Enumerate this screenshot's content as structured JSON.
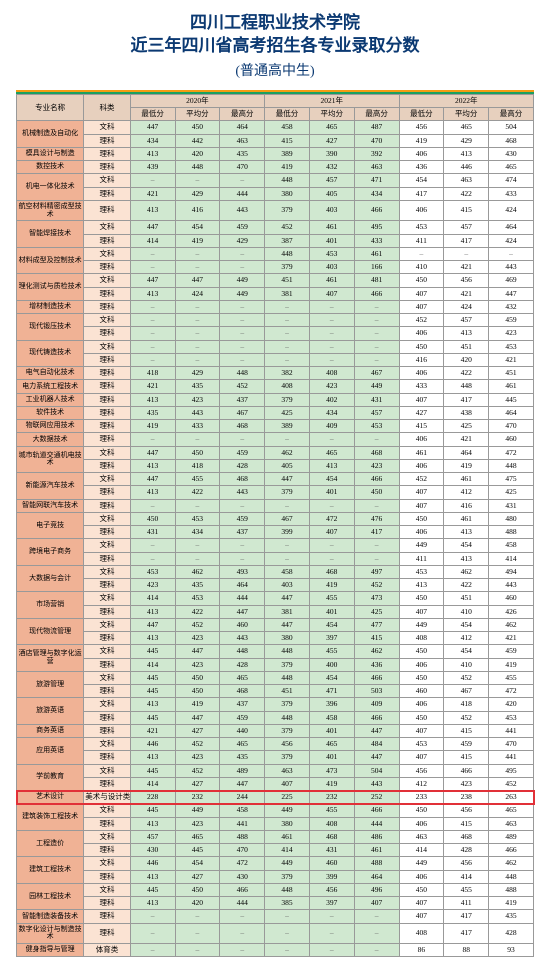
{
  "header": {
    "title1": "四川工程职业技术学院",
    "title2": "近三年四川省高考招生各专业录取分数",
    "subtitle": "普通高中生"
  },
  "columns": {
    "major": "专业名称",
    "cat": "科类",
    "years": [
      "2020年",
      "2021年",
      "2022年"
    ],
    "subs": [
      "最低分",
      "平均分",
      "最高分"
    ]
  },
  "rows": [
    {
      "major": "机械制造及自动化",
      "hl": false,
      "sub": [
        {
          "cat": "文科",
          "v": [
            "447",
            "450",
            "464",
            "458",
            "465",
            "487",
            "456",
            "465",
            "504"
          ]
        },
        {
          "cat": "理科",
          "v": [
            "434",
            "442",
            "463",
            "415",
            "427",
            "470",
            "419",
            "429",
            "468"
          ]
        }
      ]
    },
    {
      "major": "模具设计与制造",
      "hl": false,
      "sub": [
        {
          "cat": "理科",
          "v": [
            "413",
            "420",
            "435",
            "389",
            "390",
            "392",
            "406",
            "413",
            "430"
          ]
        }
      ]
    },
    {
      "major": "数控技术",
      "hl": false,
      "sub": [
        {
          "cat": "理科",
          "v": [
            "439",
            "448",
            "470",
            "419",
            "432",
            "463",
            "436",
            "446",
            "465"
          ]
        }
      ]
    },
    {
      "major": "机电一体化技术",
      "hl": false,
      "sub": [
        {
          "cat": "文科",
          "v": [
            "–",
            "–",
            "–",
            "448",
            "457",
            "471",
            "454",
            "463",
            "474"
          ]
        },
        {
          "cat": "理科",
          "v": [
            "421",
            "429",
            "444",
            "380",
            "405",
            "434",
            "417",
            "422",
            "433"
          ]
        }
      ]
    },
    {
      "major": "航空材料精密成型技术",
      "hl": false,
      "sub": [
        {
          "cat": "理科",
          "v": [
            "413",
            "416",
            "443",
            "379",
            "403",
            "466",
            "406",
            "415",
            "424"
          ]
        }
      ]
    },
    {
      "major": "智能焊接技术",
      "hl": false,
      "sub": [
        {
          "cat": "文科",
          "v": [
            "447",
            "454",
            "459",
            "452",
            "461",
            "495",
            "453",
            "457",
            "464"
          ]
        },
        {
          "cat": "理科",
          "v": [
            "414",
            "419",
            "429",
            "387",
            "401",
            "433",
            "411",
            "417",
            "424"
          ]
        }
      ]
    },
    {
      "major": "材料成型及控制技术",
      "hl": false,
      "sub": [
        {
          "cat": "文科",
          "v": [
            "–",
            "–",
            "–",
            "448",
            "453",
            "461",
            "–",
            "–",
            "–"
          ]
        },
        {
          "cat": "理科",
          "v": [
            "–",
            "–",
            "–",
            "379",
            "403",
            "166",
            "410",
            "421",
            "443"
          ]
        }
      ]
    },
    {
      "major": "理化测试与质检技术",
      "hl": false,
      "sub": [
        {
          "cat": "文科",
          "v": [
            "447",
            "447",
            "449",
            "451",
            "461",
            "481",
            "450",
            "456",
            "469"
          ]
        },
        {
          "cat": "理科",
          "v": [
            "413",
            "424",
            "449",
            "381",
            "407",
            "466",
            "407",
            "421",
            "447"
          ]
        }
      ]
    },
    {
      "major": "增材制造技术",
      "hl": false,
      "sub": [
        {
          "cat": "理科",
          "v": [
            "–",
            "–",
            "–",
            "–",
            "–",
            "–",
            "407",
            "424",
            "432"
          ]
        }
      ]
    },
    {
      "major": "现代锻压技术",
      "hl": false,
      "sub": [
        {
          "cat": "文科",
          "v": [
            "–",
            "–",
            "–",
            "–",
            "–",
            "–",
            "452",
            "457",
            "459"
          ]
        },
        {
          "cat": "理科",
          "v": [
            "–",
            "–",
            "–",
            "–",
            "–",
            "–",
            "406",
            "413",
            "423"
          ]
        }
      ]
    },
    {
      "major": "现代铸造技术",
      "hl": false,
      "sub": [
        {
          "cat": "文科",
          "v": [
            "–",
            "–",
            "–",
            "–",
            "–",
            "–",
            "450",
            "451",
            "453"
          ]
        },
        {
          "cat": "理科",
          "v": [
            "–",
            "–",
            "–",
            "–",
            "–",
            "–",
            "416",
            "420",
            "421"
          ]
        }
      ]
    },
    {
      "major": "电气自动化技术",
      "hl": false,
      "sub": [
        {
          "cat": "理科",
          "v": [
            "418",
            "429",
            "448",
            "382",
            "408",
            "467",
            "406",
            "422",
            "451"
          ]
        }
      ]
    },
    {
      "major": "电力系统工程技术",
      "hl": false,
      "sub": [
        {
          "cat": "理科",
          "v": [
            "421",
            "435",
            "452",
            "408",
            "423",
            "449",
            "433",
            "448",
            "461"
          ]
        }
      ]
    },
    {
      "major": "工业机器人技术",
      "hl": false,
      "sub": [
        {
          "cat": "理科",
          "v": [
            "413",
            "423",
            "437",
            "379",
            "402",
            "431",
            "407",
            "417",
            "445"
          ]
        }
      ]
    },
    {
      "major": "软件技术",
      "hl": false,
      "sub": [
        {
          "cat": "理科",
          "v": [
            "435",
            "443",
            "467",
            "425",
            "434",
            "457",
            "427",
            "438",
            "464"
          ]
        }
      ]
    },
    {
      "major": "物联网应用技术",
      "hl": false,
      "sub": [
        {
          "cat": "理科",
          "v": [
            "419",
            "433",
            "468",
            "389",
            "409",
            "453",
            "415",
            "425",
            "470"
          ]
        }
      ]
    },
    {
      "major": "大数据技术",
      "hl": false,
      "sub": [
        {
          "cat": "理科",
          "v": [
            "–",
            "–",
            "–",
            "–",
            "–",
            "–",
            "406",
            "421",
            "460"
          ]
        }
      ]
    },
    {
      "major": "城市轨道交通机电技术",
      "hl": false,
      "sub": [
        {
          "cat": "文科",
          "v": [
            "447",
            "450",
            "459",
            "462",
            "465",
            "468",
            "461",
            "464",
            "472"
          ]
        },
        {
          "cat": "理科",
          "v": [
            "413",
            "418",
            "428",
            "405",
            "413",
            "423",
            "406",
            "419",
            "448"
          ]
        }
      ]
    },
    {
      "major": "新能源汽车技术",
      "hl": false,
      "sub": [
        {
          "cat": "文科",
          "v": [
            "447",
            "455",
            "468",
            "447",
            "454",
            "466",
            "452",
            "461",
            "475"
          ]
        },
        {
          "cat": "理科",
          "v": [
            "413",
            "422",
            "443",
            "379",
            "401",
            "450",
            "407",
            "412",
            "425"
          ]
        }
      ]
    },
    {
      "major": "智能网联汽车技术",
      "hl": false,
      "sub": [
        {
          "cat": "理科",
          "v": [
            "–",
            "–",
            "–",
            "–",
            "–",
            "–",
            "407",
            "416",
            "431"
          ]
        }
      ]
    },
    {
      "major": "电子竞技",
      "hl": false,
      "sub": [
        {
          "cat": "文科",
          "v": [
            "450",
            "453",
            "459",
            "467",
            "472",
            "476",
            "450",
            "461",
            "480"
          ]
        },
        {
          "cat": "理科",
          "v": [
            "431",
            "434",
            "437",
            "399",
            "407",
            "417",
            "406",
            "413",
            "488"
          ]
        }
      ]
    },
    {
      "major": "跨境电子商务",
      "hl": false,
      "sub": [
        {
          "cat": "文科",
          "v": [
            "–",
            "–",
            "–",
            "–",
            "–",
            "–",
            "449",
            "454",
            "458"
          ]
        },
        {
          "cat": "理科",
          "v": [
            "–",
            "–",
            "–",
            "–",
            "–",
            "–",
            "411",
            "413",
            "414"
          ]
        }
      ]
    },
    {
      "major": "大数据与会计",
      "hl": false,
      "sub": [
        {
          "cat": "文科",
          "v": [
            "453",
            "462",
            "493",
            "458",
            "468",
            "497",
            "453",
            "462",
            "494"
          ]
        },
        {
          "cat": "理科",
          "v": [
            "423",
            "435",
            "464",
            "403",
            "419",
            "452",
            "413",
            "422",
            "443"
          ]
        }
      ]
    },
    {
      "major": "市场营销",
      "hl": false,
      "sub": [
        {
          "cat": "文科",
          "v": [
            "414",
            "453",
            "444",
            "447",
            "455",
            "473",
            "450",
            "451",
            "460"
          ]
        },
        {
          "cat": "理科",
          "v": [
            "413",
            "422",
            "447",
            "381",
            "401",
            "425",
            "407",
            "410",
            "426"
          ]
        }
      ]
    },
    {
      "major": "现代物流管理",
      "hl": false,
      "sub": [
        {
          "cat": "文科",
          "v": [
            "447",
            "452",
            "460",
            "447",
            "454",
            "477",
            "449",
            "454",
            "462"
          ]
        },
        {
          "cat": "理科",
          "v": [
            "413",
            "423",
            "443",
            "380",
            "397",
            "415",
            "408",
            "412",
            "421"
          ]
        }
      ]
    },
    {
      "major": "酒店管理与数字化运营",
      "hl": false,
      "sub": [
        {
          "cat": "文科",
          "v": [
            "445",
            "447",
            "448",
            "448",
            "455",
            "462",
            "450",
            "454",
            "459"
          ]
        },
        {
          "cat": "理科",
          "v": [
            "414",
            "423",
            "428",
            "379",
            "400",
            "436",
            "406",
            "410",
            "419"
          ]
        }
      ]
    },
    {
      "major": "旅游管理",
      "hl": false,
      "sub": [
        {
          "cat": "文科",
          "v": [
            "445",
            "450",
            "465",
            "448",
            "454",
            "466",
            "450",
            "452",
            "455"
          ]
        },
        {
          "cat": "理科",
          "v": [
            "445",
            "450",
            "468",
            "451",
            "471",
            "503",
            "460",
            "467",
            "472"
          ]
        }
      ]
    },
    {
      "major": "旅游英语",
      "hl": false,
      "sub": [
        {
          "cat": "文科",
          "v": [
            "413",
            "419",
            "437",
            "379",
            "396",
            "409",
            "406",
            "418",
            "420"
          ]
        },
        {
          "cat": "理科",
          "v": [
            "445",
            "447",
            "459",
            "448",
            "458",
            "466",
            "450",
            "452",
            "453"
          ]
        }
      ]
    },
    {
      "major": "商务英语",
      "hl": false,
      "sub": [
        {
          "cat": "理科",
          "v": [
            "421",
            "427",
            "440",
            "379",
            "401",
            "447",
            "407",
            "415",
            "441"
          ]
        }
      ]
    },
    {
      "major": "应用英语",
      "hl": false,
      "sub": [
        {
          "cat": "文科",
          "v": [
            "446",
            "452",
            "465",
            "456",
            "465",
            "484",
            "453",
            "459",
            "470"
          ]
        },
        {
          "cat": "理科",
          "v": [
            "413",
            "423",
            "435",
            "379",
            "401",
            "447",
            "407",
            "415",
            "441"
          ]
        }
      ]
    },
    {
      "major": "学前教育",
      "hl": false,
      "sub": [
        {
          "cat": "文科",
          "v": [
            "445",
            "452",
            "489",
            "463",
            "473",
            "504",
            "456",
            "466",
            "495"
          ]
        },
        {
          "cat": "理科",
          "v": [
            "414",
            "427",
            "447",
            "407",
            "419",
            "443",
            "412",
            "423",
            "452"
          ]
        }
      ]
    },
    {
      "major": "艺术设计",
      "hl": true,
      "sub": [
        {
          "cat": "美术与设计类",
          "v": [
            "228",
            "232",
            "244",
            "225",
            "232",
            "252",
            "233",
            "238",
            "263"
          ]
        }
      ]
    },
    {
      "major": "建筑装饰工程技术",
      "hl": false,
      "sub": [
        {
          "cat": "文科",
          "v": [
            "445",
            "449",
            "458",
            "449",
            "455",
            "466",
            "450",
            "456",
            "465"
          ]
        },
        {
          "cat": "理科",
          "v": [
            "413",
            "423",
            "441",
            "380",
            "408",
            "444",
            "406",
            "415",
            "463"
          ]
        }
      ]
    },
    {
      "major": "工程造价",
      "hl": false,
      "sub": [
        {
          "cat": "文科",
          "v": [
            "457",
            "465",
            "488",
            "461",
            "468",
            "486",
            "463",
            "468",
            "489"
          ]
        },
        {
          "cat": "理科",
          "v": [
            "430",
            "445",
            "470",
            "414",
            "431",
            "461",
            "414",
            "428",
            "466"
          ]
        }
      ]
    },
    {
      "major": "建筑工程技术",
      "hl": false,
      "sub": [
        {
          "cat": "文科",
          "v": [
            "446",
            "454",
            "472",
            "449",
            "460",
            "488",
            "449",
            "456",
            "462"
          ]
        },
        {
          "cat": "理科",
          "v": [
            "413",
            "427",
            "430",
            "379",
            "399",
            "464",
            "406",
            "414",
            "448"
          ]
        }
      ]
    },
    {
      "major": "园林工程技术",
      "hl": false,
      "sub": [
        {
          "cat": "文科",
          "v": [
            "445",
            "450",
            "466",
            "448",
            "456",
            "496",
            "450",
            "455",
            "488"
          ]
        },
        {
          "cat": "理科",
          "v": [
            "413",
            "420",
            "444",
            "385",
            "397",
            "407",
            "407",
            "411",
            "419"
          ]
        }
      ]
    },
    {
      "major": "智能制造装备技术",
      "hl": false,
      "sub": [
        {
          "cat": "理科",
          "v": [
            "–",
            "–",
            "–",
            "–",
            "–",
            "–",
            "407",
            "417",
            "435"
          ]
        }
      ]
    },
    {
      "major": "数字化设计与制造技术",
      "hl": false,
      "sub": [
        {
          "cat": "理科",
          "v": [
            "–",
            "–",
            "–",
            "–",
            "–",
            "–",
            "408",
            "417",
            "428"
          ]
        }
      ]
    },
    {
      "major": "健身指导与管理",
      "hl": false,
      "sub": [
        {
          "cat": "体育类",
          "v": [
            "–",
            "–",
            "–",
            "–",
            "–",
            "–",
            "86",
            "88",
            "93"
          ]
        }
      ]
    }
  ],
  "style": {
    "header_bg": "#e7d0be",
    "major_bg": "#f0b295",
    "cat_bg": "#fbe3d3",
    "year20_bg": "#d0e8d0",
    "year21_bg": "#d0e8d0",
    "year22_bg": "#ffffff",
    "highlight_color": "#e13038",
    "title_color": "#0b3972",
    "rule_top": "#f39c12",
    "rule_bottom": "#1aa060",
    "font_size_table": 7.5
  }
}
